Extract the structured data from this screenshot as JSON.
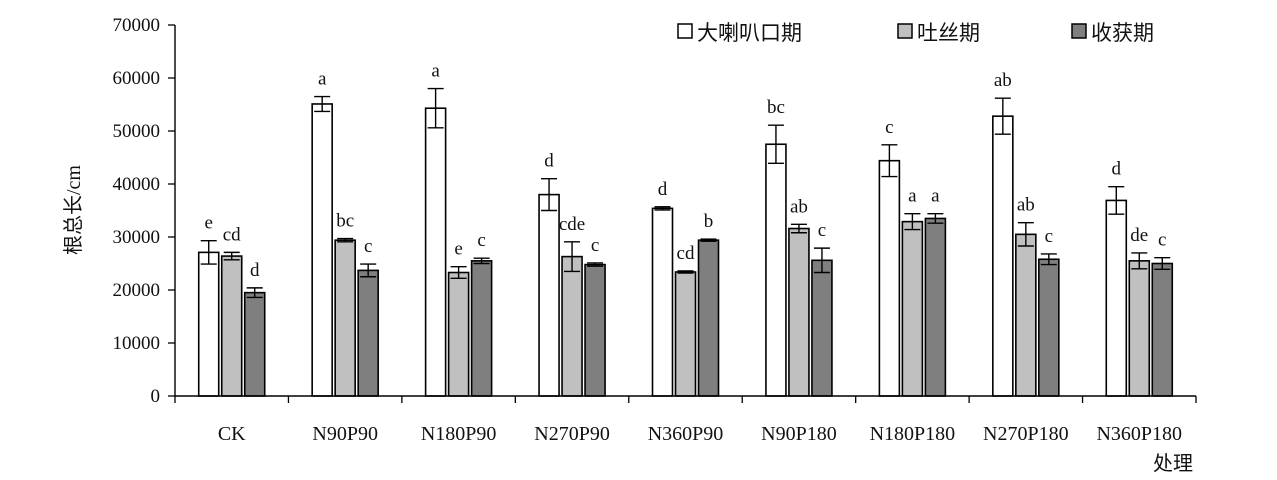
{
  "chart_data": {
    "type": "bar",
    "title": "",
    "ylabel": "根总长/cm",
    "xlabel": "处理",
    "ylim": [
      0,
      70000
    ],
    "yticks": [
      0,
      10000,
      20000,
      30000,
      40000,
      50000,
      60000,
      70000
    ],
    "grid": false,
    "legend_position": "top-right",
    "categories": [
      "CK",
      "N90P90",
      "N180P90",
      "N270P90",
      "N360P90",
      "N90P180",
      "N180P180",
      "N270P180",
      "N360P180"
    ],
    "series": [
      {
        "name": "大喇叭口期",
        "color": "#ffffff",
        "values": [
          27100,
          55100,
          54300,
          38000,
          35400,
          47500,
          44400,
          52800,
          36900
        ],
        "errors": [
          2200,
          1400,
          3700,
          3000,
          300,
          3600,
          3000,
          3400,
          2600
        ],
        "letters": [
          "e",
          "a",
          "a",
          "d",
          "d",
          "bc",
          "c",
          "ab",
          "d"
        ]
      },
      {
        "name": "吐丝期",
        "color": "#c0c0c0",
        "values": [
          26400,
          29400,
          23300,
          26300,
          23400,
          31600,
          32900,
          30500,
          25500
        ],
        "errors": [
          700,
          300,
          1100,
          2800,
          200,
          800,
          1500,
          2200,
          1500
        ],
        "letters": [
          "cd",
          "bc",
          "e",
          "cde",
          "cd",
          "ab",
          "a",
          "ab",
          "de"
        ]
      },
      {
        "name": "收获期",
        "color": "#7f7f7f",
        "values": [
          19500,
          23700,
          25500,
          24800,
          29400,
          25600,
          33500,
          25800,
          25000
        ],
        "errors": [
          900,
          1200,
          500,
          300,
          200,
          2300,
          900,
          1000,
          1100
        ],
        "letters": [
          "d",
          "c",
          "c",
          "c",
          "b",
          "c",
          "a",
          "c",
          "c"
        ]
      }
    ]
  }
}
